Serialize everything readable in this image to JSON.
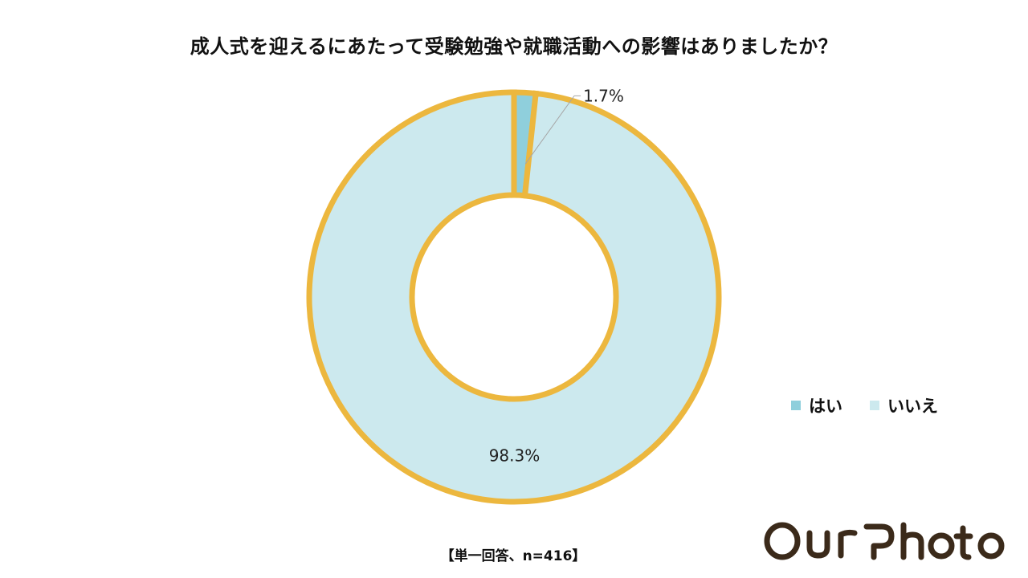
{
  "page_title": "成人式を迎えるにあたって受験勉強や就職活動への影響はありましたか？",
  "footnote": "【単一回答、n=416】",
  "brand": {
    "logo_text": "OurPhoto",
    "logo_color": "#3b2a1a"
  },
  "colors": {
    "ring_outline": "#ecb73e",
    "slice_hai": "#8fcfdc",
    "slice_iie": "#cce9ee",
    "leader_line": "#a6a6a6"
  },
  "chart_data": {
    "type": "pie",
    "variant": "donut",
    "title": "成人式を迎えるにあたって受験勉強や就職活動への影響はありましたか？",
    "categories": [
      "はい",
      "いいえ"
    ],
    "values": [
      1.7,
      98.3
    ],
    "value_labels": [
      "1.7%",
      "98.3%"
    ],
    "unit": "%",
    "legend_position": "right"
  }
}
